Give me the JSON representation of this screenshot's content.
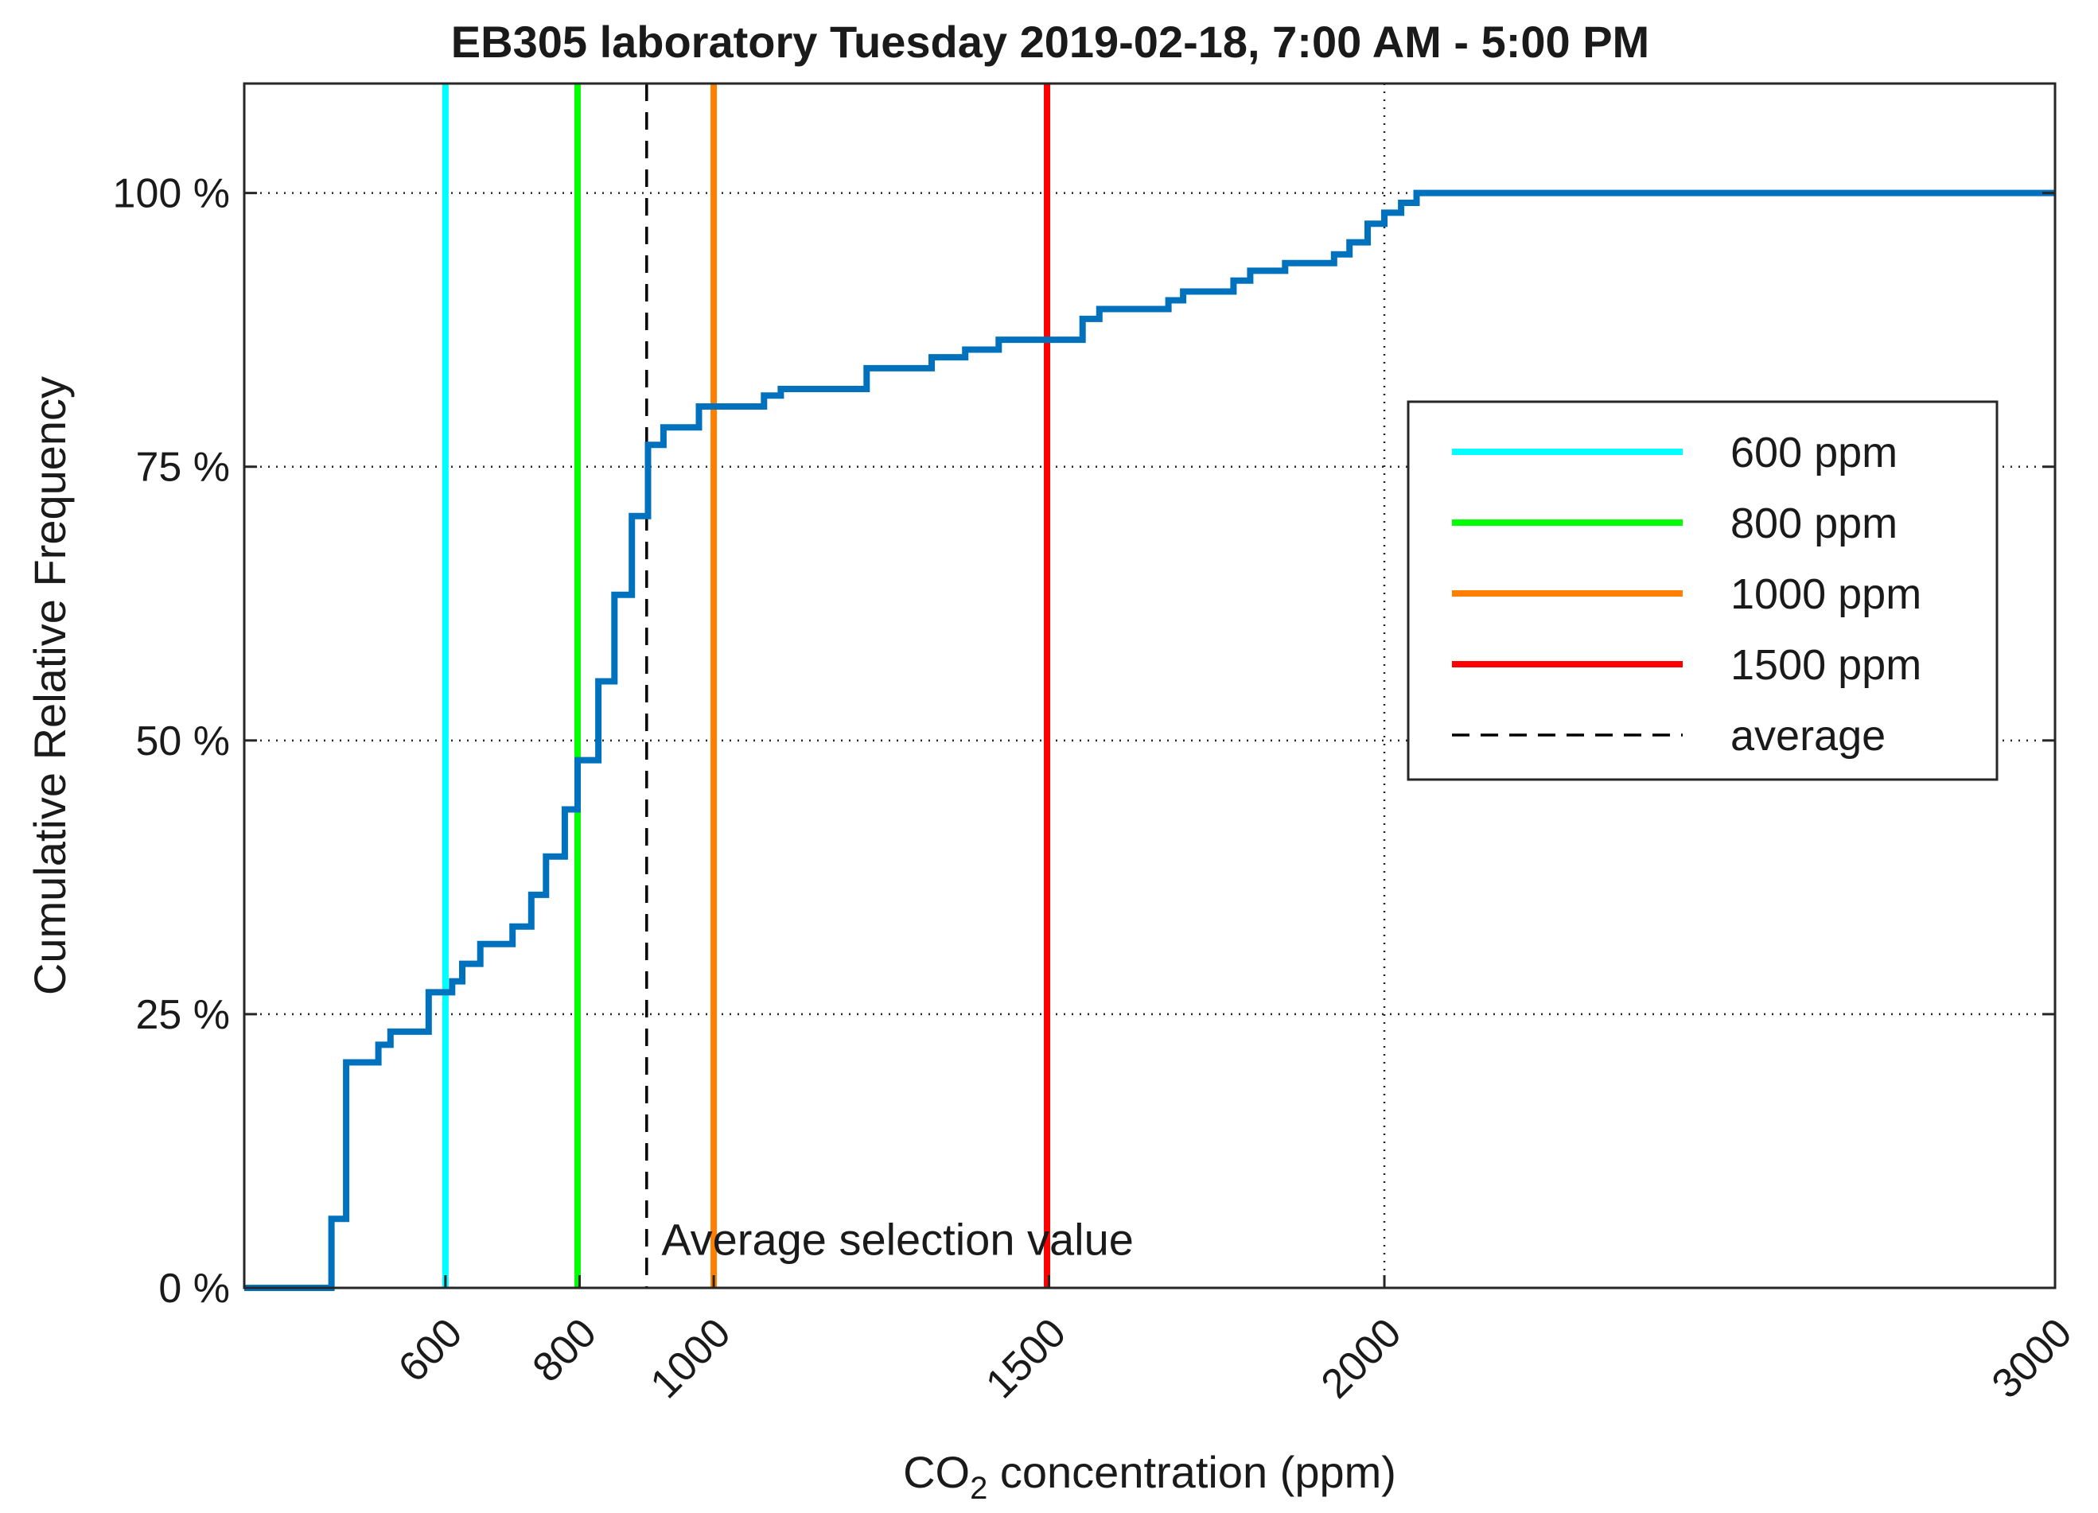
{
  "chart_data": {
    "type": "line",
    "title": "EB305 laboratory Tuesday 2019-02-18, 7:00 AM - 5:00 PM",
    "xlabel_parts": [
      "CO",
      "2",
      " concentration (ppm)"
    ],
    "ylabel": "Cumulative Relative Frequency",
    "xlim": [
      300,
      3000
    ],
    "ylim": [
      0,
      110
    ],
    "grid": "dotted",
    "x_ticks": [
      {
        "value": 600,
        "label": "600"
      },
      {
        "value": 800,
        "label": "800"
      },
      {
        "value": 1000,
        "label": "1000"
      },
      {
        "value": 1500,
        "label": "1500"
      },
      {
        "value": 2000,
        "label": "2000"
      },
      {
        "value": 3000,
        "label": "3000"
      }
    ],
    "y_ticks": [
      {
        "value": 0,
        "label": "0 %"
      },
      {
        "value": 25,
        "label": "25 %"
      },
      {
        "value": 50,
        "label": "50 %"
      },
      {
        "value": 75,
        "label": "75 %"
      },
      {
        "value": 100,
        "label": "100 %"
      }
    ],
    "grid_x": [
      2000
    ],
    "grid_y": [
      25,
      50,
      75,
      100
    ],
    "series": [
      {
        "name": "Cumulative relative frequency",
        "color": "#0072BD",
        "step": true,
        "points": [
          [
            300,
            0
          ],
          [
            430,
            0
          ],
          [
            430,
            6.3
          ],
          [
            452,
            6.3
          ],
          [
            452,
            20.6
          ],
          [
            500,
            20.6
          ],
          [
            500,
            22.2
          ],
          [
            518,
            22.2
          ],
          [
            518,
            23.4
          ],
          [
            575,
            23.4
          ],
          [
            575,
            27
          ],
          [
            610,
            27
          ],
          [
            610,
            28
          ],
          [
            625,
            28
          ],
          [
            625,
            29.6
          ],
          [
            652,
            29.6
          ],
          [
            652,
            31.4
          ],
          [
            700,
            31.4
          ],
          [
            700,
            33
          ],
          [
            728,
            33
          ],
          [
            728,
            35.9
          ],
          [
            750,
            35.9
          ],
          [
            750,
            39.4
          ],
          [
            778,
            39.4
          ],
          [
            778,
            43.7
          ],
          [
            797,
            43.7
          ],
          [
            797,
            48.2
          ],
          [
            828,
            48.2
          ],
          [
            828,
            55.4
          ],
          [
            852,
            55.4
          ],
          [
            852,
            63.3
          ],
          [
            878,
            63.3
          ],
          [
            878,
            70.5
          ],
          [
            902,
            70.5
          ],
          [
            902,
            77
          ],
          [
            925,
            77
          ],
          [
            925,
            78.6
          ],
          [
            978,
            78.6
          ],
          [
            978,
            80.5
          ],
          [
            1075,
            80.5
          ],
          [
            1075,
            81.5
          ],
          [
            1100,
            81.5
          ],
          [
            1100,
            82.1
          ],
          [
            1228,
            82.1
          ],
          [
            1228,
            84
          ],
          [
            1325,
            84
          ],
          [
            1325,
            85
          ],
          [
            1375,
            85
          ],
          [
            1375,
            85.7
          ],
          [
            1425,
            85.7
          ],
          [
            1425,
            86.6
          ],
          [
            1550,
            86.6
          ],
          [
            1550,
            88.5
          ],
          [
            1575,
            88.5
          ],
          [
            1575,
            89.4
          ],
          [
            1678,
            89.4
          ],
          [
            1678,
            90.2
          ],
          [
            1700,
            90.2
          ],
          [
            1700,
            91
          ],
          [
            1775,
            91
          ],
          [
            1775,
            92
          ],
          [
            1800,
            92
          ],
          [
            1800,
            92.9
          ],
          [
            1852,
            92.9
          ],
          [
            1852,
            93.6
          ],
          [
            1925,
            93.6
          ],
          [
            1925,
            94.4
          ],
          [
            1948,
            94.4
          ],
          [
            1948,
            95.5
          ],
          [
            1975,
            95.5
          ],
          [
            1975,
            97.2
          ],
          [
            2000,
            97.2
          ],
          [
            2000,
            98.2
          ],
          [
            2025,
            98.2
          ],
          [
            2025,
            99.1
          ],
          [
            2048,
            99.1
          ],
          [
            2048,
            100
          ],
          [
            3000,
            100
          ]
        ]
      }
    ],
    "reference_lines": [
      {
        "name": "600 ppm",
        "x": 600,
        "color": "#00FFFF",
        "style": "solid"
      },
      {
        "name": "800 ppm",
        "x": 797,
        "color": "#00FF00",
        "style": "solid"
      },
      {
        "name": "1000 ppm",
        "x": 1000,
        "color": "#FF8000",
        "style": "solid"
      },
      {
        "name": "1500 ppm",
        "x": 1497,
        "color": "#FF0000",
        "style": "solid"
      },
      {
        "name": "average",
        "x": 900,
        "color": "#000000",
        "style": "dashed"
      }
    ],
    "legend": {
      "position": "right",
      "entries": [
        {
          "label": "600 ppm",
          "color": "#00FFFF",
          "style": "solid"
        },
        {
          "label": "800 ppm",
          "color": "#00FF00",
          "style": "solid"
        },
        {
          "label": "1000 ppm",
          "color": "#FF8000",
          "style": "solid"
        },
        {
          "label": "1500 ppm",
          "color": "#FF0000",
          "style": "solid"
        },
        {
          "label": "average",
          "color": "#000000",
          "style": "dashed"
        }
      ]
    },
    "annotations": [
      {
        "text": "Average selection value",
        "x": 922,
        "y": 3
      }
    ]
  }
}
